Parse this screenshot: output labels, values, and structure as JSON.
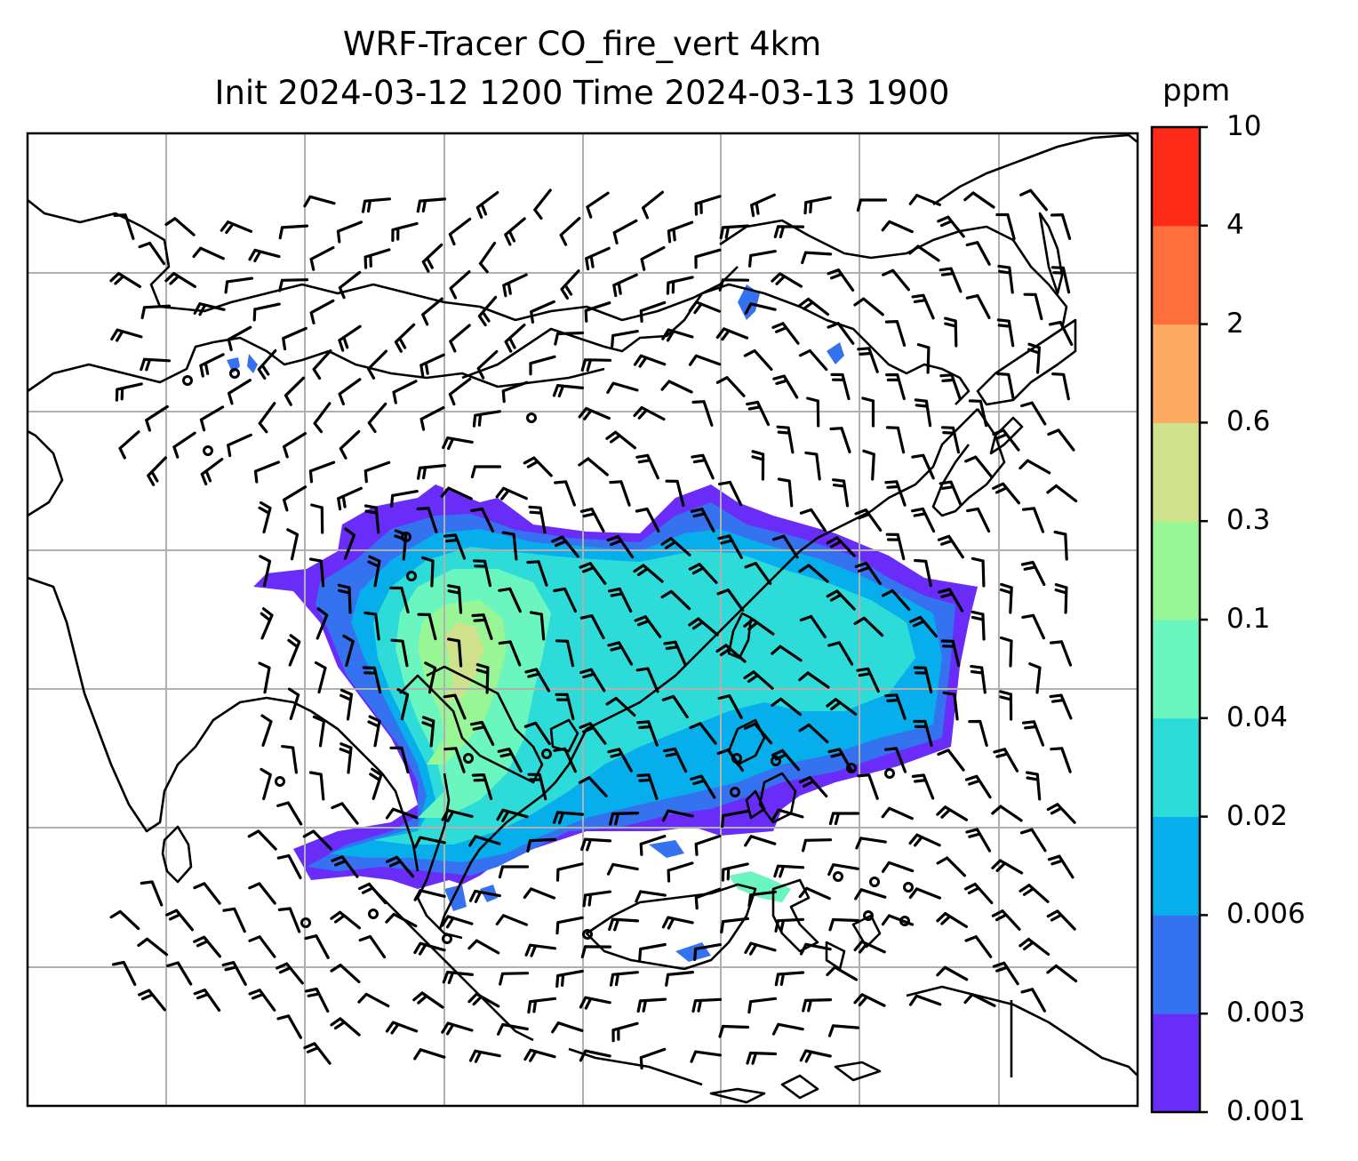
{
  "title": {
    "line1": "WRF-Tracer CO_fire_vert 4km",
    "line2": "Init 2024-03-12 1200 Time 2024-03-13 1900"
  },
  "colorbar": {
    "unit": "ppm",
    "ticks": [
      "0.001",
      "0.003",
      "0.006",
      "0.02",
      "0.04",
      "0.1",
      "0.3",
      "0.6",
      "2",
      "4",
      "10"
    ],
    "colors": [
      "#6a2cf8",
      "#3472f0",
      "#06aeec",
      "#2ddcd8",
      "#6cf6bf",
      "#98f696",
      "#cfe18a",
      "#fdab62",
      "#fe6f3d",
      "#fd2b17"
    ]
  },
  "map": {
    "variable": "CO_fire_vert",
    "vertical_level": "4km",
    "coastline_color": "#000000",
    "gridline_color": "#b0b0b0",
    "wind_barb_color": "#000000"
  }
}
